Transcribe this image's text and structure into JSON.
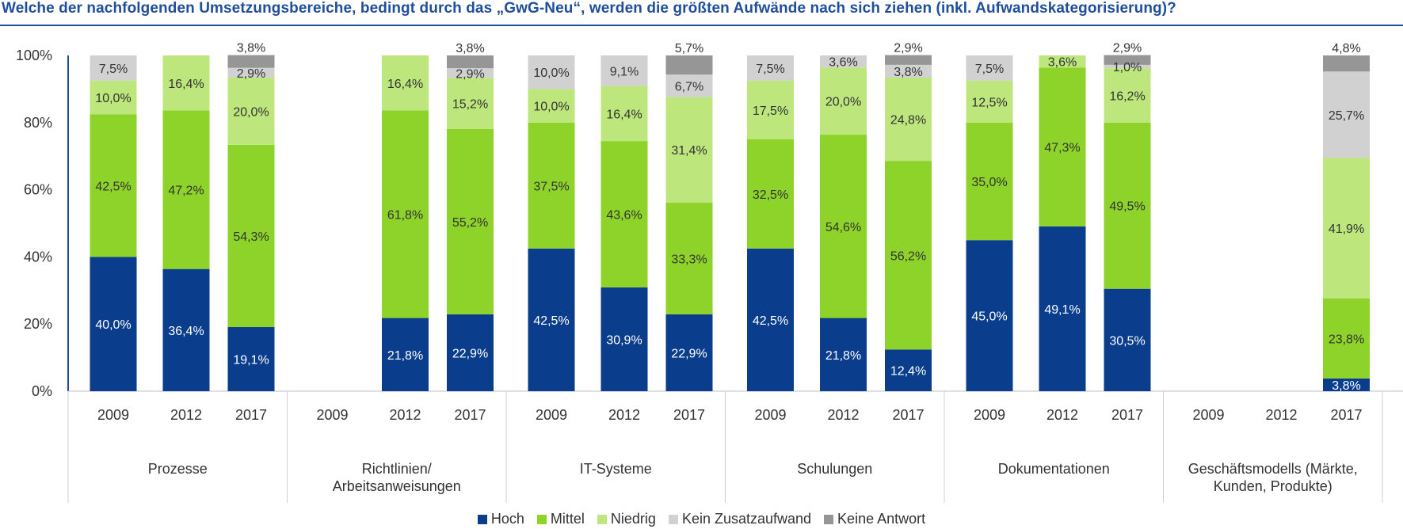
{
  "title": "Welche der nachfolgenden Umsetzungsbereiche, bedingt durch das „GwG-Neu“, werden die größten Aufwände nach sich ziehen (inkl. Aufwandskategorisierung)?",
  "colors": {
    "Hoch": "#0a3d8c",
    "Mittel": "#8ed32a",
    "Niedrig": "#bde77d",
    "Kein Zusatzaufwand": "#d1d1d1",
    "Keine Antwort": "#969696",
    "title": "#1f4e9b",
    "axis": "#1f4e9b"
  },
  "chart_data": {
    "type": "bar",
    "stacked": true,
    "y_tick_labels": [
      "0%",
      "20%",
      "40%",
      "60%",
      "80%",
      "100%"
    ],
    "ylim": [
      0,
      100
    ],
    "legend": [
      "Hoch",
      "Mittel",
      "Niedrig",
      "Kein Zusatzaufwand",
      "Keine Antwort"
    ],
    "legend_position": "bottom",
    "groups": [
      {
        "name": "Prozesse",
        "bars": [
          {
            "year": "2009",
            "values": [
              40.0,
              42.5,
              10.0,
              7.5,
              0
            ],
            "labels": [
              "40,0%",
              "42,5%",
              "10,0%",
              "7,5%",
              ""
            ]
          },
          {
            "year": "2012",
            "values": [
              36.4,
              47.2,
              16.4,
              0,
              0
            ],
            "labels": [
              "36,4%",
              "47,2%",
              "16,4%",
              "",
              ""
            ]
          },
          {
            "year": "2017",
            "values": [
              19.1,
              54.3,
              20.0,
              2.9,
              3.8
            ],
            "labels": [
              "19,1%",
              "54,3%",
              "20,0%",
              "2,9%",
              "3,8%"
            ]
          }
        ]
      },
      {
        "name": "Richtlinien/ Arbeitsanweisungen",
        "bars": [
          {
            "year": "2009",
            "values": [
              0,
              0,
              0,
              0,
              0
            ],
            "labels": [
              "",
              "",
              "",
              "",
              ""
            ]
          },
          {
            "year": "2012",
            "values": [
              21.8,
              61.8,
              16.4,
              0,
              0
            ],
            "labels": [
              "21,8%",
              "61,8%",
              "16,4%",
              "",
              ""
            ]
          },
          {
            "year": "2017",
            "values": [
              22.9,
              55.2,
              15.2,
              2.9,
              3.8
            ],
            "labels": [
              "22,9%",
              "55,2%",
              "15,2%",
              "2,9%",
              "3,8%"
            ]
          }
        ]
      },
      {
        "name": "IT-Systeme",
        "bars": [
          {
            "year": "2009",
            "values": [
              42.5,
              37.5,
              10.0,
              10.0,
              0
            ],
            "labels": [
              "42,5%",
              "37,5%",
              "10,0%",
              "10,0%",
              ""
            ]
          },
          {
            "year": "2012",
            "values": [
              30.9,
              43.6,
              16.4,
              9.1,
              0
            ],
            "labels": [
              "30,9%",
              "43,6%",
              "16,4%",
              "9,1%",
              ""
            ]
          },
          {
            "year": "2017",
            "values": [
              22.9,
              33.3,
              31.4,
              6.7,
              5.7
            ],
            "labels": [
              "22,9%",
              "33,3%",
              "31,4%",
              "6,7%",
              "5,7%"
            ]
          }
        ]
      },
      {
        "name": "Schulungen",
        "bars": [
          {
            "year": "2009",
            "values": [
              42.5,
              32.5,
              17.5,
              7.5,
              0
            ],
            "labels": [
              "42,5%",
              "32,5%",
              "17,5%",
              "7,5%",
              ""
            ]
          },
          {
            "year": "2012",
            "values": [
              21.8,
              54.6,
              20.0,
              3.6,
              0
            ],
            "labels": [
              "21,8%",
              "54,6%",
              "20,0%",
              "3,6%",
              ""
            ]
          },
          {
            "year": "2017",
            "values": [
              12.4,
              56.2,
              24.8,
              3.8,
              2.9
            ],
            "labels": [
              "12,4%",
              "56,2%",
              "24,8%",
              "3,8%",
              "2,9%"
            ]
          }
        ]
      },
      {
        "name": "Dokumentationen",
        "bars": [
          {
            "year": "2009",
            "values": [
              45.0,
              35.0,
              12.5,
              7.5,
              0
            ],
            "labels": [
              "45,0%",
              "35,0%",
              "12,5%",
              "7,5%",
              ""
            ]
          },
          {
            "year": "2012",
            "values": [
              49.1,
              47.3,
              3.6,
              0,
              0
            ],
            "labels": [
              "49,1%",
              "47,3%",
              "3,6%",
              "",
              ""
            ]
          },
          {
            "year": "2017",
            "values": [
              30.5,
              49.5,
              16.2,
              1.0,
              2.9
            ],
            "labels": [
              "30,5%",
              "49,5%",
              "16,2%",
              "1,0%",
              "2,9%"
            ]
          }
        ]
      },
      {
        "name": "Geschäftsmodells (Märkte, Kunden, Produkte)",
        "bars": [
          {
            "year": "2009",
            "values": [
              0,
              0,
              0,
              0,
              0
            ],
            "labels": [
              "",
              "",
              "",
              "",
              ""
            ]
          },
          {
            "year": "2012",
            "values": [
              0,
              0,
              0,
              0,
              0
            ],
            "labels": [
              "",
              "",
              "",
              "",
              ""
            ]
          },
          {
            "year": "2017",
            "values": [
              3.8,
              23.8,
              41.9,
              25.7,
              4.8
            ],
            "labels": [
              "3,8%",
              "23,8%",
              "41,9%",
              "25,7%",
              "4,8%"
            ]
          }
        ]
      }
    ]
  }
}
